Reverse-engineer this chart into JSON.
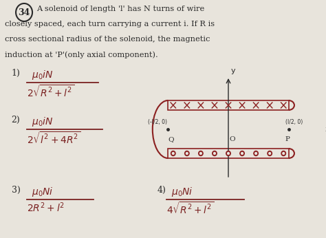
{
  "bg_color": "#e8e4dc",
  "text_color": "#7a2020",
  "title_color": "#1a1a1a",
  "question_num": "34",
  "lines": [
    "A solenoid of length 'l' has N turns of wire",
    "closely spaced, each turn carrying a current i. If R is",
    "cross sectional radius of the solenoid, the magnetic",
    "induction at 'P'(only axial component)."
  ],
  "diagram_color": "#8b2020",
  "axis_color": "#2a2a2a",
  "bg_color_inner": "#dedad2"
}
